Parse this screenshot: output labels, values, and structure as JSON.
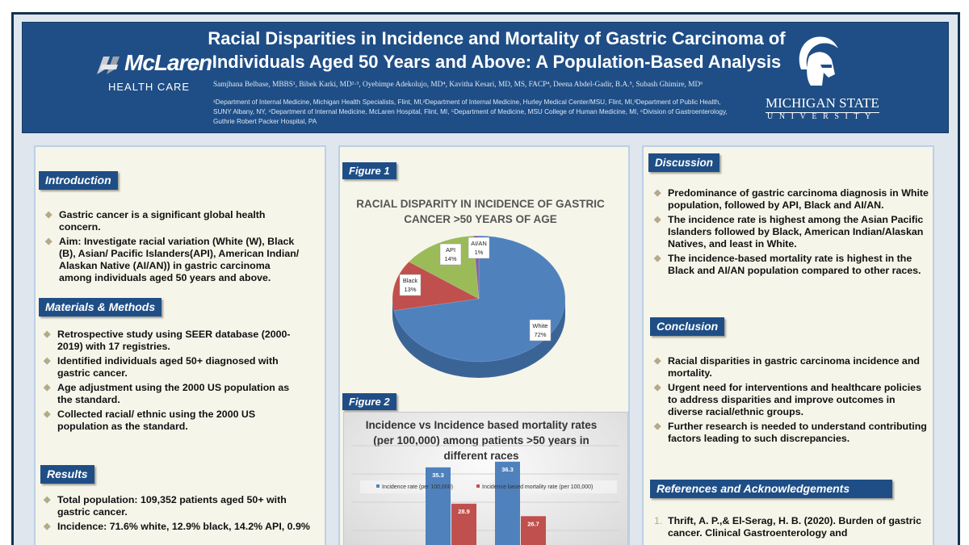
{
  "header": {
    "title_line1": "Racial Disparities in Incidence and Mortality of Gastric Carcinoma of",
    "title_line2": "Individuals Aged 50 Years and Above: A Population-Based Analysis",
    "authors": "Samjhana Belbase, MBBS¹, Bibek Karki, MD²·³, Oyebimpe Adekolujo, MD⁴, Kavitha Kesari, MD, MS, FACP⁴, Deena Abdel-Gadir, B.A.⁵, Subash Ghimire, MD⁶",
    "affiliations": "¹Department of Internal Medicine, Michigan Health Specialists, Flint, MI,²Department of Internal Medicine, Hurley Medical Center/MSU, Flint, MI,³Department of Public Health, SUNY Albany, NY, ⁴Department of Internal Medicine, McLaren Hospital, Flint, MI, ⁵Department of Medicine, MSU College of Human Medicine, MI, ⁶Division of Gastroenterology, Guthrie Robert Packer Hospital, PA",
    "logo_left_name": "McLaren",
    "logo_left_sub": "HEALTH CARE",
    "logo_right_line1": "MICHIGAN STATE",
    "logo_right_line2": "UNIVERSITY"
  },
  "introduction": {
    "heading": "Introduction",
    "bullets": [
      "Gastric cancer is a significant global health concern.",
      "Aim: Investigate racial variation (White (W), Black (B), Asian/ Pacific Islanders(API), American Indian/ Alaskan Native (AI/AN)) in gastric carcinoma among individuals aged 50 years and above."
    ]
  },
  "methods": {
    "heading": "Materials & Methods",
    "bullets": [
      "Retrospective study using SEER database (2000-2019) with 17 registries.",
      "Identified individuals aged 50+ diagnosed with gastric cancer.",
      "Age adjustment using the 2000 US population as the standard.",
      "Collected racial/ ethnic using the 2000 US population as the standard."
    ]
  },
  "results": {
    "heading": "Results",
    "bullets": [
      "Total population: 109,352 patients aged 50+ with gastric cancer.",
      "Incidence: 71.6% white, 12.9% black, 14.2% API, 0.9%"
    ]
  },
  "figure1": {
    "label": "Figure 1"
  },
  "figure2": {
    "label": "Figure 2"
  },
  "chart_data": [
    {
      "type": "pie",
      "title": "RACIAL DISPARITY IN INCIDENCE OF GASTRIC CANCER >50 YEARS OF AGE",
      "slices": [
        {
          "label": "White",
          "value": 72,
          "text": "72%",
          "color": "#4f81bd"
        },
        {
          "label": "Black",
          "value": 13,
          "text": "13%",
          "color": "#c0504d"
        },
        {
          "label": "API",
          "value": 14,
          "text": "14%",
          "color": "#9bbb59"
        },
        {
          "label": "AI/AN",
          "value": 1,
          "text": "1%",
          "color": "#8064a2"
        }
      ]
    },
    {
      "type": "bar",
      "title": "Incidence vs Incidence based mortality rates (per 100,000) among patients >50 years in different races",
      "legend": "top",
      "series": [
        {
          "name": "Incidence rate (per 100,000)",
          "color": "#4f81bd",
          "values": [
            35.3,
            36.3
          ]
        },
        {
          "name": "Incidence based mortality rate (per 100,000)",
          "color": "#c0504d",
          "values": [
            28.9,
            26.7
          ]
        }
      ]
    }
  ],
  "discussion": {
    "heading": "Discussion",
    "bullets": [
      "Predominance of gastric carcinoma diagnosis in White population, followed by API, Black and AI/AN.",
      "The incidence rate is highest among the Asian Pacific Islanders followed by Black, American Indian/Alaskan Natives, and least in White.",
      "The incidence-based mortality rate is highest in the Black and AI/AN population compared to other races."
    ]
  },
  "conclusion": {
    "heading": "Conclusion",
    "bullets": [
      "Racial disparities in gastric carcinoma incidence and mortality.",
      "Urgent need for interventions and healthcare policies to address disparities and improve outcomes in diverse racial/ethnic groups.",
      "Further research is needed to understand contributing factors leading to such discrepancies."
    ]
  },
  "references": {
    "heading": "References and Acknowledgements",
    "items": [
      {
        "num": "1.",
        "text": "Thrift, A. P.,& El-Serag, H. B. (2020). Burden of gastric cancer. Clinical Gastroenterology and"
      }
    ]
  }
}
